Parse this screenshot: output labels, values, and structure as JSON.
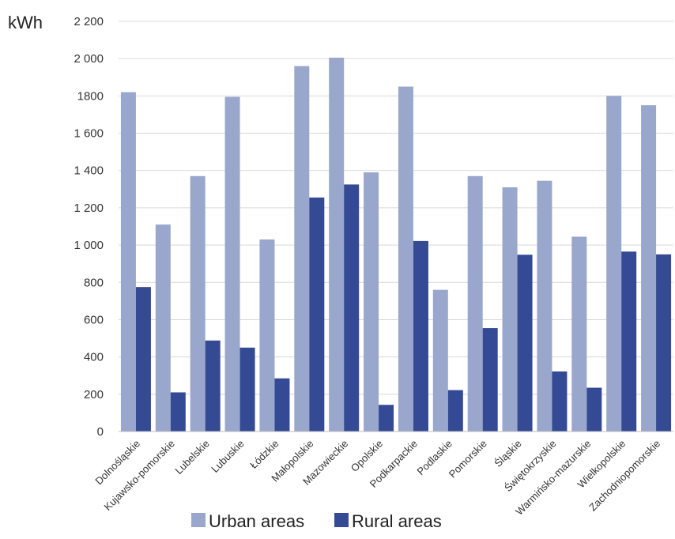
{
  "chart_data": {
    "type": "bar",
    "ylabel": "kWh",
    "ylim": [
      0,
      2200
    ],
    "ytick_step": 200,
    "yticks": [
      "0",
      "200",
      "400",
      "600",
      "800",
      "1 000",
      "1 200",
      "1 400",
      "1 600",
      "1800",
      "2 000",
      "2 200"
    ],
    "grid": true,
    "legend": "bottom",
    "categories": [
      "Dolnośląskie",
      "Kujawsko-pomorskie",
      "Lubelskie",
      "Lubuskie",
      "Łódzkie",
      "Małopolskie",
      "Mazowieckie",
      "Opolskie",
      "Podkarpackie",
      "Podlaskie",
      "Pomorskie",
      "Śląskie",
      "Świętokrzyskie",
      "Warmińsko-mazurskie",
      "Wielkopolskie",
      "Zachodniopomorskie"
    ],
    "series": [
      {
        "name": "Urban areas",
        "color": "#9aa7cc",
        "values": [
          1820,
          1110,
          1370,
          1795,
          1030,
          1960,
          2005,
          1390,
          1850,
          760,
          1370,
          1310,
          1345,
          1045,
          1800,
          1750
        ]
      },
      {
        "name": "Rural areas",
        "color": "#344a94",
        "values": [
          775,
          210,
          488,
          450,
          285,
          1255,
          1325,
          143,
          1022,
          222,
          555,
          948,
          322,
          235,
          965,
          950
        ]
      }
    ]
  }
}
